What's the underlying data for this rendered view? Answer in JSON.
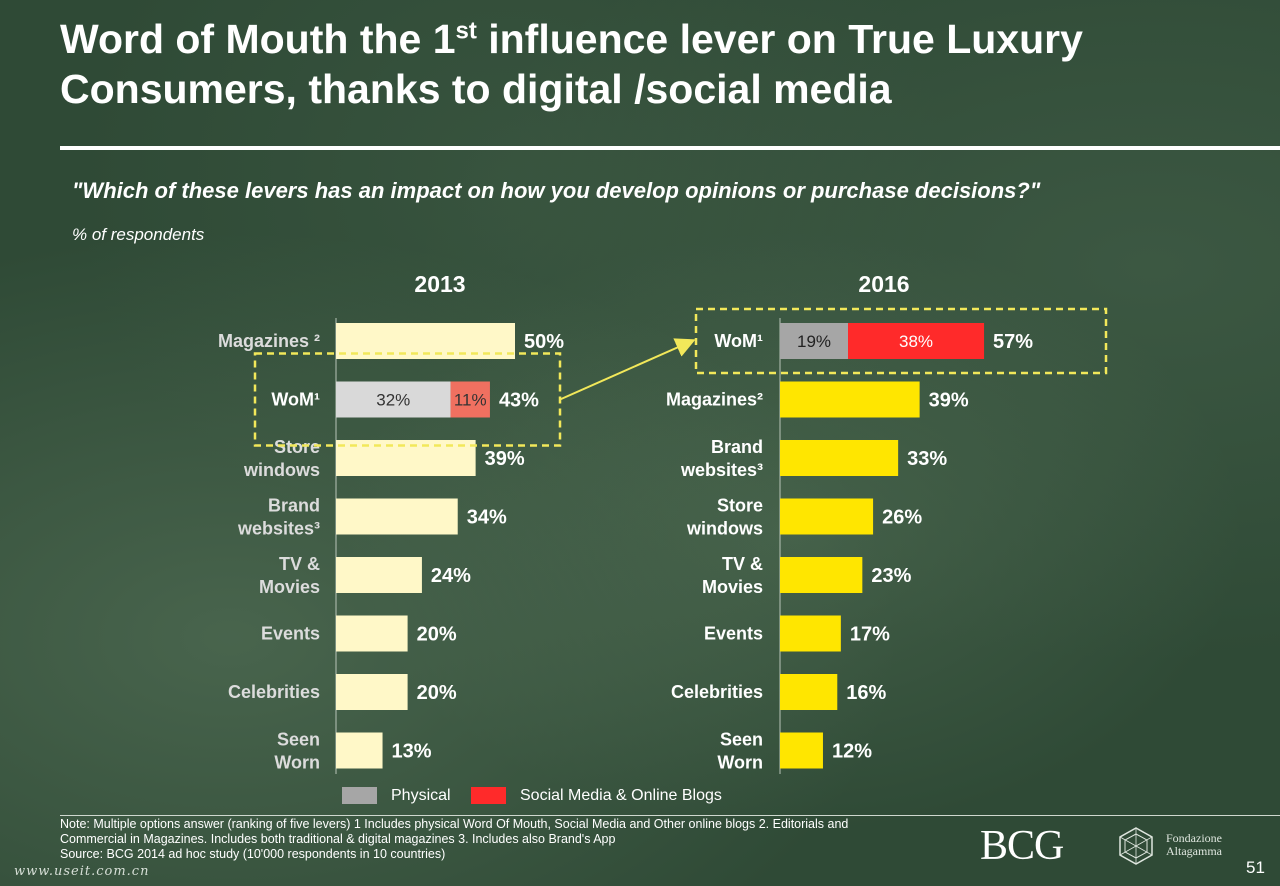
{
  "title": {
    "line1_pre": "Word of Mouth the 1",
    "line1_sup": "st",
    "line1_post": " influence lever on True Luxury",
    "line2": "Consumers, thanks to digital /social media"
  },
  "question": "\"Which of these levers has an impact on how you develop opinions or purchase decisions?\"",
  "unit_label": "% of respondents",
  "colors": {
    "physical": "#a6a6a6",
    "social": "#ff2a2a",
    "bar2013": "#fff8c8",
    "bar2016": "#ffe600",
    "physical_2013": "#d9d9d9",
    "social_2013": "#f07060",
    "highlight": "#f2e85a"
  },
  "chart_data": [
    {
      "type": "bar",
      "orientation": "horizontal",
      "year": "2013",
      "unit": "%",
      "categories": [
        "Magazines 2",
        "WoM¹",
        "Store windows",
        "Brand websites³",
        "TV & Movies",
        "Events",
        "Celebrities",
        "Seen Worn"
      ],
      "category_lines": [
        [
          "Magazines ²"
        ],
        [
          "WoM¹"
        ],
        [
          "Store",
          "windows"
        ],
        [
          "Brand",
          "websites³"
        ],
        [
          "TV &",
          "Movies"
        ],
        [
          "Events"
        ],
        [
          "Celebrities"
        ],
        [
          "Seen",
          "Worn"
        ]
      ],
      "values": [
        50,
        43,
        39,
        34,
        24,
        20,
        20,
        13
      ],
      "labels": [
        "50%",
        "43%",
        "39%",
        "34%",
        "24%",
        "20%",
        "20%",
        "13%"
      ],
      "stacked": {
        "category": "WoM¹",
        "segments": [
          {
            "name": "Physical",
            "value": 32,
            "label": "32%"
          },
          {
            "name": "Social Media & Online Blogs",
            "value": 11,
            "label": "11%"
          }
        ]
      },
      "highlighted": "WoM¹"
    },
    {
      "type": "bar",
      "orientation": "horizontal",
      "year": "2016",
      "unit": "%",
      "categories": [
        "WoM¹",
        "Magazines²",
        "Brand websites³",
        "Store windows",
        "TV & Movies",
        "Events",
        "Celebrities",
        "Seen Worn"
      ],
      "category_lines": [
        [
          "WoM¹"
        ],
        [
          "Magazines²"
        ],
        [
          "Brand",
          "websites³"
        ],
        [
          "Store",
          "windows"
        ],
        [
          "TV &",
          "Movies"
        ],
        [
          "Events"
        ],
        [
          "Celebrities"
        ],
        [
          "Seen",
          "Worn"
        ]
      ],
      "values": [
        57,
        39,
        33,
        26,
        23,
        17,
        16,
        12
      ],
      "labels": [
        "57%",
        "39%",
        "33%",
        "26%",
        "23%",
        "17%",
        "16%",
        "12%"
      ],
      "stacked": {
        "category": "WoM¹",
        "segments": [
          {
            "name": "Physical",
            "value": 19,
            "label": "19%"
          },
          {
            "name": "Social Media & Online Blogs",
            "value": 38,
            "label": "38%"
          }
        ]
      },
      "highlighted": "WoM¹"
    }
  ],
  "legend": [
    {
      "label": "Physical",
      "color": "#a6a6a6"
    },
    {
      "label": "Social Media & Online Blogs",
      "color": "#ff2a2a"
    }
  ],
  "notes": [
    "Note: Multiple options answer (ranking of five levers)       1 Includes physical Word Of Mouth, Social Media and Other online blogs       2. Editorials and",
    "Commercial in Magazines. Includes both traditional & digital magazines       3. Includes also Brand's App",
    "Source: BCG 2014 ad hoc study (10'000 respondents in 10 countries)"
  ],
  "watermark": "www.useit.com.cn",
  "logos": {
    "bcg": "BCG",
    "altagamma_line1": "Fondazione",
    "altagamma_line2": "Altagamma"
  },
  "page_number": "51"
}
